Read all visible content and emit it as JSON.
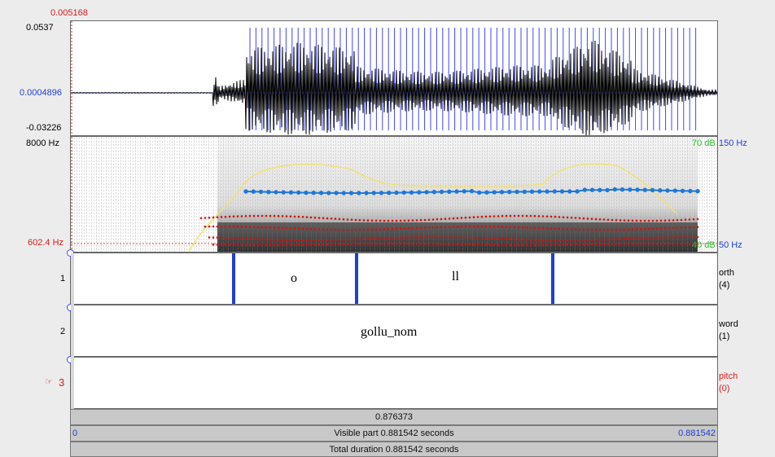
{
  "waveform": {
    "cursor_value": "0.005168",
    "max": "0.0537",
    "center": "0.0004896",
    "min": "-0.03226"
  },
  "spectrogram": {
    "top_freq": "8000 Hz",
    "cursor_freq": "602.4 Hz",
    "db_top": "70 dB",
    "db_bottom": "40 dB",
    "pitch_top": "150 Hz",
    "pitch_bottom": "50 Hz"
  },
  "tiers": [
    {
      "number": "1",
      "name": "orth",
      "count": "(4)",
      "intervals": [
        "o",
        "ll"
      ]
    },
    {
      "number": "2",
      "name": "word",
      "count": "(1)",
      "intervals": [
        "gollu_nom"
      ]
    },
    {
      "number": "3",
      "name": "pitch",
      "count": "(0)",
      "intervals": [],
      "pointer": "☞"
    }
  ],
  "bars": {
    "cursor_time": "0.876373",
    "visible_start": "0",
    "visible_label": "Visible part 0.881542 seconds",
    "visible_end": "0.881542",
    "total_label": "Total duration 0.881542 seconds"
  }
}
